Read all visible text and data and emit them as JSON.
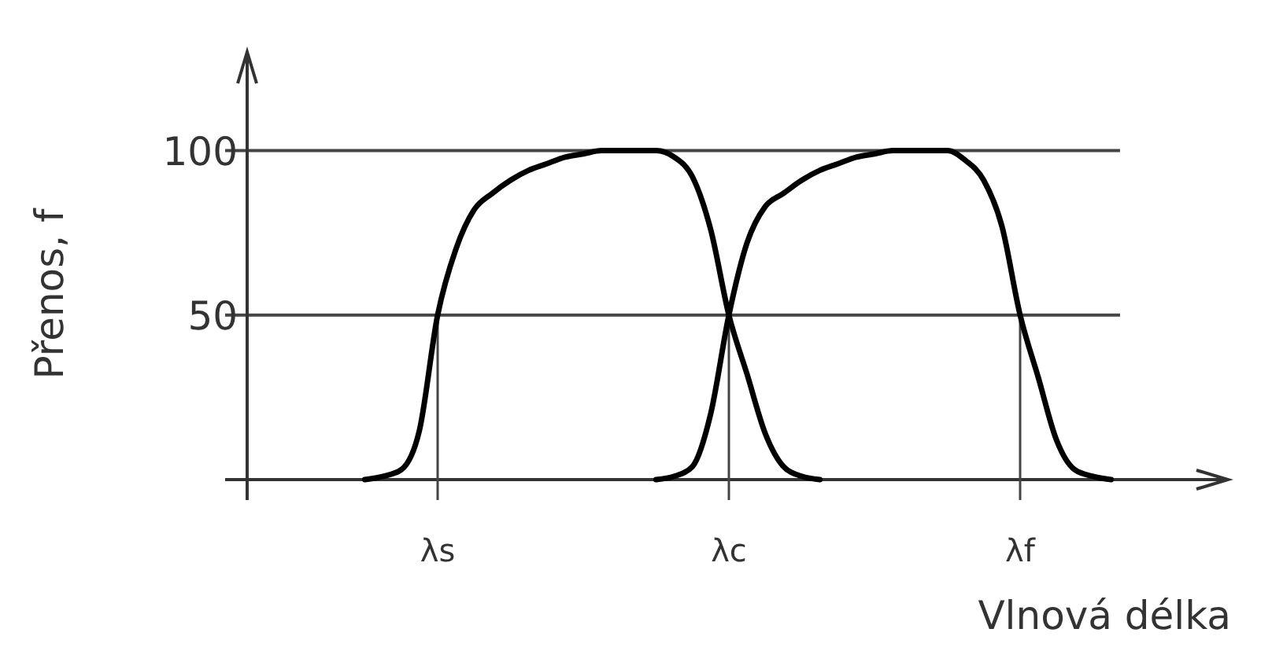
{
  "chart_data": {
    "type": "line",
    "xlabel": "Vlnová délka",
    "ylabel": "Přenos, f",
    "categories": [
      null,
      null,
      null,
      null,
      null,
      null,
      null,
      null,
      "λs",
      null,
      null,
      null,
      null,
      null,
      null,
      null,
      null,
      null,
      null,
      null,
      null,
      null,
      null,
      null,
      "λc",
      null,
      null,
      null,
      null,
      null,
      null,
      null,
      null,
      null,
      null,
      null,
      null,
      null,
      null,
      null,
      "λf",
      null,
      null,
      null,
      null,
      null,
      null,
      null,
      null
    ],
    "ref_lines": [
      {
        "axis": "x",
        "value": "λs",
        "color": "#444444"
      },
      {
        "axis": "x",
        "value": "λc",
        "color": "#444444"
      },
      {
        "axis": "x",
        "value": "λf",
        "color": "#444444"
      }
    ],
    "ylim": [
      0,
      130
    ],
    "yticks": [
      50,
      100
    ],
    "grid": "y",
    "series": [
      {
        "color": "#000000",
        "values": [
          null,
          null,
          null,
          null,
          0,
          1,
          3,
          15,
          50,
          70,
          82,
          87,
          91,
          94,
          96,
          98,
          99,
          100,
          100,
          100,
          100,
          98,
          92,
          76,
          50,
          32,
          14,
          4,
          1,
          0,
          null,
          null,
          null,
          null,
          null,
          null,
          null,
          null,
          null,
          null,
          null,
          null,
          null,
          null,
          null,
          null,
          null,
          null,
          null
        ]
      },
      {
        "color": "#000000",
        "values": [
          null,
          null,
          null,
          null,
          null,
          null,
          null,
          null,
          null,
          null,
          null,
          null,
          null,
          null,
          null,
          null,
          null,
          null,
          null,
          null,
          0,
          1,
          4,
          20,
          50,
          72,
          83,
          87,
          91,
          94,
          96,
          98,
          99,
          100,
          100,
          100,
          100,
          97,
          91,
          77,
          50,
          31,
          12,
          3,
          1,
          0,
          null,
          null,
          null
        ]
      }
    ]
  }
}
